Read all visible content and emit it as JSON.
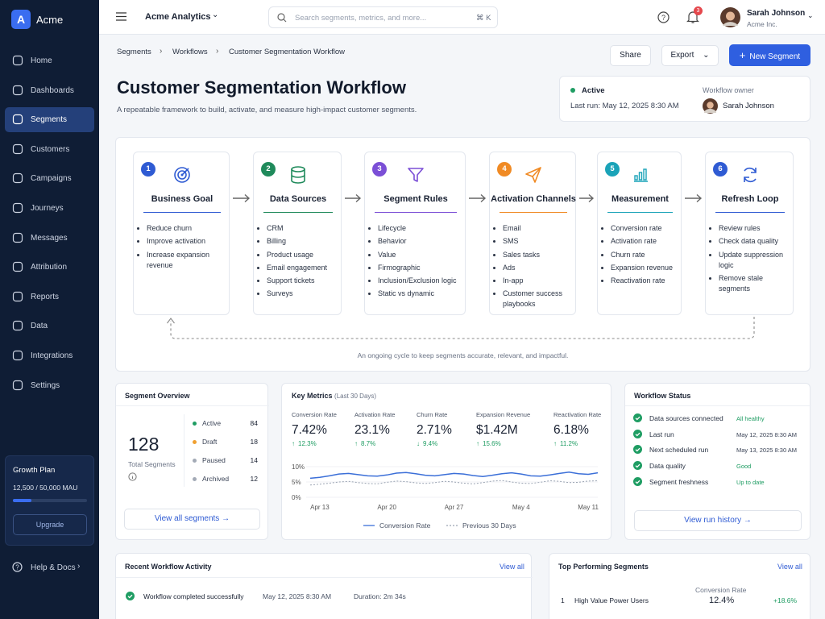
{
  "sidebar": {
    "logo": "A",
    "brand": "Acme",
    "nav": [
      "Home",
      "Dashboards",
      "Segments",
      "Customers",
      "Campaigns",
      "Journeys",
      "Messages",
      "Attribution",
      "Reports",
      "Data",
      "Integrations",
      "Settings"
    ],
    "plan": {
      "title": "Growth Plan",
      "used": 12500,
      "limit": 50000,
      "usage_label": "12,500 / 50,000 MAU",
      "button": "Upgrade"
    },
    "help": "Help & Docs"
  },
  "topbar": {
    "app": "Acme Analytics",
    "search": "Search segments, metrics, and more...",
    "shortcut": "⌘ K",
    "notifications": 3,
    "user": {
      "name": "Sarah Johnson",
      "org": "Acme Inc."
    }
  },
  "breadcrumb": [
    "Segments",
    "Workflows",
    "Customer Segmentation Workflow"
  ],
  "actions": {
    "share": "Share",
    "export": "Export",
    "new": "New Segment"
  },
  "header": {
    "title": "Customer Segmentation Workflow",
    "subtitle": "A repeatable framework to build, activate, and measure high-impact customer segments."
  },
  "status": {
    "state": "Active",
    "last_run": "Last run: May 12, 2025 8:30 AM",
    "owner_label": "Workflow owner",
    "owner": "Sarah Johnson"
  },
  "workflow": {
    "steps": [
      {
        "number": 1,
        "title": "Business Goal",
        "color": "#2f5bd3",
        "items": [
          "Reduce churn",
          "Improve activation",
          "Increase expansion revenue"
        ]
      },
      {
        "number": 2,
        "title": "Data Sources",
        "color": "#1f8a5b",
        "items": [
          "CRM",
          "Billing",
          "Product usage",
          "Email engagement",
          "Support tickets",
          "Surveys"
        ]
      },
      {
        "number": 3,
        "title": "Segment Rules",
        "color": "#7b4fd6",
        "items": [
          "Lifecycle",
          "Behavior",
          "Value",
          "Firmographic",
          "Inclusion/Exclusion logic",
          "Static vs dynamic"
        ]
      },
      {
        "number": 4,
        "title": "Activation Channels",
        "color": "#f08a24",
        "items": [
          "Email",
          "SMS",
          "Sales tasks",
          "Ads",
          "In-app",
          "Customer success playbooks"
        ]
      },
      {
        "number": 5,
        "title": "Measurement",
        "color": "#1aa3b8",
        "items": [
          "Conversion rate",
          "Activation rate",
          "Churn rate",
          "Expansion revenue",
          "Reactivation rate"
        ]
      },
      {
        "number": 6,
        "title": "Refresh Loop",
        "color": "#2f5bd3",
        "items": [
          "Review rules",
          "Check data quality",
          "Update suppression logic",
          "Remove stale segments"
        ]
      }
    ],
    "caption": "An ongoing cycle to keep segments accurate, relevant, and impactful."
  },
  "segment_overview": {
    "title": "Segment Overview",
    "total": 128,
    "total_label": "Total Segments",
    "statuses": [
      {
        "name": "Active",
        "count": 84,
        "color": "#1f9d63"
      },
      {
        "name": "Draft",
        "count": 18,
        "color": "#f0a030"
      },
      {
        "name": "Paused",
        "count": 14,
        "color": "#a3aab6"
      },
      {
        "name": "Archived",
        "count": 12,
        "color": "#a3aab6"
      }
    ],
    "button": "View all segments"
  },
  "key_metrics": {
    "title": "Key Metrics",
    "period": "(Last 30 Days)",
    "metrics": [
      {
        "label": "Conversion Rate",
        "value": "7.42%",
        "change": "12.3%",
        "direction": "up"
      },
      {
        "label": "Activation Rate",
        "value": "23.1%",
        "change": "8.7%",
        "direction": "up"
      },
      {
        "label": "Churn Rate",
        "value": "2.71%",
        "change": "9.4%",
        "direction": "down"
      },
      {
        "label": "Expansion Revenue",
        "value": "$1.42M",
        "change": "15.6%",
        "direction": "up"
      },
      {
        "label": "Reactivation Rate",
        "value": "6.18%",
        "change": "11.2%",
        "direction": "up"
      }
    ],
    "chart": {
      "type": "line",
      "categories": [
        null,
        "Apr 13",
        null,
        null,
        null,
        null,
        null,
        null,
        "Apr 20",
        null,
        null,
        null,
        null,
        null,
        null,
        "Apr 27",
        null,
        null,
        null,
        null,
        null,
        null,
        "May 4",
        null,
        null,
        null,
        null,
        null,
        null,
        "May 11",
        null
      ],
      "series": [
        {
          "name": "Conversion Rate",
          "color": "#3b6fd8",
          "dashed": false,
          "values": [
            6.2,
            6.5,
            7.0,
            7.6,
            7.8,
            7.4,
            7.0,
            6.9,
            7.3,
            7.9,
            8.1,
            7.7,
            7.2,
            7.0,
            7.4,
            7.8,
            7.6,
            7.1,
            6.8,
            7.2,
            7.7,
            8.0,
            7.6,
            7.0,
            6.9,
            7.3,
            7.8,
            8.2,
            7.7,
            7.5,
            8.0
          ]
        },
        {
          "name": "Previous 30 Days",
          "color": "#9aa3b2",
          "dashed": true,
          "values": [
            4.0,
            4.3,
            4.6,
            5.0,
            5.2,
            4.8,
            4.5,
            4.4,
            4.9,
            5.3,
            5.1,
            4.7,
            4.5,
            4.8,
            5.2,
            5.0,
            4.6,
            4.4,
            4.8,
            5.3,
            5.5,
            5.0,
            4.6,
            4.5,
            4.9,
            5.4,
            5.2,
            4.8,
            4.9,
            5.3,
            5.4
          ]
        }
      ],
      "ylim": [
        0,
        10
      ],
      "yticks": [
        {
          "value": 10,
          "label": "10%"
        },
        {
          "value": 5,
          "label": "5%"
        },
        {
          "value": 0,
          "label": "0%"
        }
      ]
    }
  },
  "workflow_status": {
    "title": "Workflow Status",
    "rows": [
      {
        "label": "Data sources connected",
        "value": "All healthy",
        "tone": "good"
      },
      {
        "label": "Last run",
        "value": "May 12, 2025 8:30 AM",
        "tone": "neutral"
      },
      {
        "label": "Next scheduled run",
        "value": "May 13, 2025 8:30 AM",
        "tone": "neutral"
      },
      {
        "label": "Data quality",
        "value": "Good",
        "tone": "good"
      },
      {
        "label": "Segment freshness",
        "value": "Up to date",
        "tone": "good"
      }
    ],
    "button": "View run history"
  },
  "recent_activity": {
    "title": "Recent Workflow Activity",
    "link": "View all",
    "rows": [
      {
        "event": "Workflow completed successfully",
        "time": "May 12, 2025 8:30 AM",
        "duration": "Duration: 2m 34s"
      }
    ]
  },
  "top_segments": {
    "title": "Top Performing Segments",
    "link": "View all",
    "column": "Conversion Rate",
    "rows": [
      {
        "rank": 1,
        "name": "High Value Power Users",
        "rate": "12.4%",
        "change": "+18.6%"
      }
    ]
  }
}
